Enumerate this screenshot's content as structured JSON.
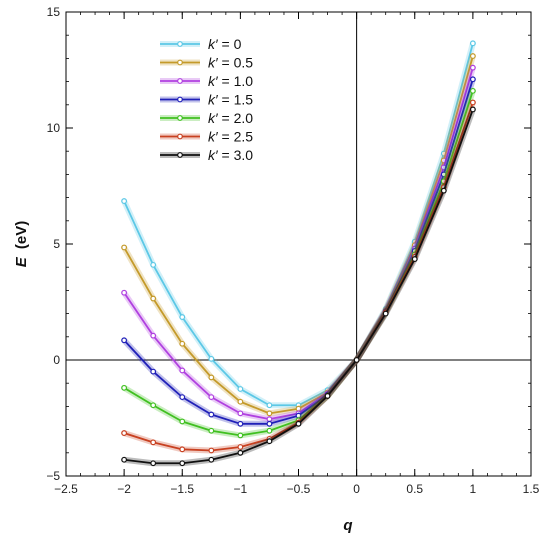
{
  "chart_data": {
    "type": "line",
    "title": "",
    "xlabel": "q",
    "ylabel_symbol": "E",
    "ylabel_unit": "(eV)",
    "xlim": [
      -2.5,
      1.5
    ],
    "ylim": [
      -5,
      15
    ],
    "x_ticks": [
      -2.5,
      -2,
      -1.5,
      -1,
      -0.5,
      0,
      0.5,
      1,
      1.5
    ],
    "x_tick_labels": [
      "−2.5",
      "−2",
      "−1.5",
      "−1",
      "−0.5",
      "0",
      "0.5",
      "1",
      "1.5"
    ],
    "y_ticks": [
      -5,
      0,
      5,
      10,
      15
    ],
    "y_tick_labels": [
      "−5",
      "0",
      "5",
      "10",
      "15"
    ],
    "x_minor_step": 0.125,
    "y_minor_step": 1,
    "legend_position": "top-center",
    "grid": false,
    "zero_lines": true,
    "legend_prefix": "k′",
    "legend_operator": "= ",
    "x": [
      -2,
      -1.75,
      -1.5,
      -1.25,
      -1,
      -0.75,
      -0.5,
      -0.25,
      0,
      0.25,
      0.5,
      0.75,
      1
    ],
    "series": [
      {
        "name": "0",
        "color": "#5cc8e6",
        "values": [
          6.85,
          4.1,
          1.85,
          0.05,
          -1.25,
          -1.95,
          -1.95,
          -1.3,
          0,
          2.2,
          5.1,
          8.9,
          13.65
        ]
      },
      {
        "name": "0.5",
        "color": "#c49a2a",
        "values": [
          4.85,
          2.65,
          0.7,
          -0.75,
          -1.8,
          -2.3,
          -2.1,
          -1.4,
          0,
          2.15,
          4.95,
          8.6,
          13.1
        ]
      },
      {
        "name": "1.0",
        "color": "#b040e0",
        "values": [
          2.9,
          1.05,
          -0.45,
          -1.6,
          -2.3,
          -2.55,
          -2.3,
          -1.45,
          0,
          2.1,
          4.8,
          8.3,
          12.6
        ]
      },
      {
        "name": "1.5",
        "color": "#2020b8",
        "values": [
          0.85,
          -0.5,
          -1.6,
          -2.35,
          -2.75,
          -2.75,
          -2.4,
          -1.5,
          0,
          2.1,
          4.7,
          8.0,
          12.1
        ]
      },
      {
        "name": "2.0",
        "color": "#40c020",
        "values": [
          -1.2,
          -1.95,
          -2.65,
          -3.05,
          -3.25,
          -3.05,
          -2.6,
          -1.55,
          0,
          2.05,
          4.55,
          7.7,
          11.6
        ]
      },
      {
        "name": "2.5",
        "color": "#c84020",
        "values": [
          -3.15,
          -3.55,
          -3.85,
          -3.9,
          -3.75,
          -3.4,
          -2.7,
          -1.55,
          0,
          2.05,
          4.45,
          7.45,
          11.1
        ]
      },
      {
        "name": "3.0",
        "color": "#101010",
        "values": [
          -4.3,
          -4.45,
          -4.45,
          -4.3,
          -4.0,
          -3.5,
          -2.75,
          -1.55,
          0,
          2.0,
          4.35,
          7.3,
          10.8
        ]
      }
    ]
  }
}
